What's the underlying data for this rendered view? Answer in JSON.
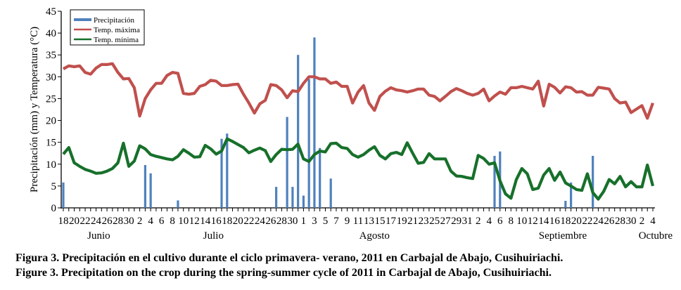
{
  "chart_data": {
    "type": "bar+line",
    "ylabel": "Precipitación (mm) y Temperatura (°C)",
    "xlabel": "",
    "ylim": [
      0,
      45
    ],
    "yticks": [
      0,
      5,
      10,
      15,
      20,
      25,
      30,
      35,
      40,
      45
    ],
    "grid": false,
    "legend_position": "top-left",
    "n_days": 109,
    "x_tick_labels": [
      "18",
      "20",
      "22",
      "24",
      "26",
      "28",
      "30",
      "2",
      "4",
      "6",
      "8",
      "10",
      "12",
      "14",
      "16",
      "18",
      "20",
      "22",
      "24",
      "26",
      "28",
      "30",
      "1",
      "3",
      "5",
      "7",
      "9",
      "11",
      "13",
      "15",
      "17",
      "19",
      "21",
      "23",
      "25",
      "27",
      "29",
      "31",
      "2",
      "4",
      "6",
      "8",
      "10",
      "12",
      "14",
      "16",
      "18",
      "20",
      "22",
      "24",
      "26",
      "28",
      "30",
      "2",
      "4"
    ],
    "months": [
      {
        "label": "Junio",
        "center_day": 6.5
      },
      {
        "label": "Julio",
        "center_day": 27.5
      },
      {
        "label": "Agosto",
        "center_day": 57
      },
      {
        "label": "Septiembre",
        "center_day": 91.5
      },
      {
        "label": "Octubre",
        "center_day": 108.5
      }
    ],
    "series": [
      {
        "name": "Precipitación",
        "kind": "bar",
        "color": "#4f81bd",
        "points": [
          [
            0,
            5.8
          ],
          [
            15,
            9.8
          ],
          [
            16,
            7.9
          ],
          [
            21,
            1.7
          ],
          [
            29,
            15.8
          ],
          [
            30,
            17
          ],
          [
            39,
            4.8
          ],
          [
            41,
            20.8
          ],
          [
            42,
            4.8
          ],
          [
            43,
            35
          ],
          [
            44,
            2.8
          ],
          [
            45,
            29.5
          ],
          [
            46,
            39
          ],
          [
            47,
            13.7
          ],
          [
            49,
            6.7
          ],
          [
            79,
            11.9
          ],
          [
            80,
            12.9
          ],
          [
            92,
            1.6
          ],
          [
            93,
            5.8
          ],
          [
            97,
            11.9
          ]
        ]
      },
      {
        "name": "Temp. máxima",
        "kind": "line",
        "color": "#c0504d",
        "values": [
          31.8,
          32.5,
          32.3,
          32.5,
          31,
          30.6,
          32,
          32.8,
          32.8,
          33,
          31,
          29.5,
          29.6,
          27.5,
          21,
          25,
          27,
          28.5,
          28.5,
          30.3,
          31,
          30.8,
          26.2,
          26,
          26.2,
          27.8,
          28.2,
          29.2,
          29,
          28,
          28,
          28.2,
          28.3,
          26,
          24,
          21.7,
          23.8,
          24.6,
          28.2,
          28,
          27,
          25.2,
          26.8,
          26.6,
          28.5,
          30,
          30,
          29.5,
          29.5,
          28.5,
          28.8,
          27.8,
          27.8,
          24,
          26.5,
          28,
          24,
          22.3,
          25.5,
          26.7,
          27.5,
          27,
          26.8,
          26.5,
          26.8,
          27.2,
          27.2,
          25.8,
          25.5,
          24.5,
          25.5,
          26.6,
          27.3,
          26.8,
          26.2,
          25.8,
          26.2,
          27.2,
          24.5,
          25.6,
          26.5,
          26,
          27.5,
          27.5,
          27.8,
          27.5,
          27.2,
          29,
          23.3,
          28.3,
          27.6,
          26.3,
          27.7,
          27.5,
          26.5,
          26.6,
          25.8,
          25.8,
          27.6,
          27.4,
          27.2,
          25,
          24,
          24.2,
          21.8,
          22.6,
          23.4,
          20.5,
          24
        ]
      },
      {
        "name": "Temp. mínima",
        "kind": "line",
        "color": "#17702a",
        "values": [
          12.3,
          13.8,
          10.3,
          9.5,
          8.8,
          8.4,
          7.9,
          8,
          8.4,
          9,
          10.3,
          14.8,
          9.5,
          10.7,
          14.2,
          13.5,
          12.2,
          11.8,
          11.5,
          11.2,
          11,
          11.8,
          13.3,
          12.5,
          11.6,
          11.7,
          14.3,
          13.5,
          12.3,
          13,
          15.8,
          15.2,
          14.5,
          13.8,
          12.6,
          13.2,
          13.7,
          13.1,
          10.6,
          12.2,
          13.4,
          13.3,
          13.4,
          14.6,
          11.2,
          10.6,
          12.2,
          13,
          12.8,
          14.7,
          14.8,
          13.8,
          13.6,
          12.2,
          11.6,
          12.2,
          13.2,
          14,
          12,
          11.2,
          12.4,
          12.7,
          12.2,
          14.9,
          12.5,
          10.2,
          10.4,
          12.4,
          11.2,
          11.2,
          11.2,
          8.4,
          7.3,
          7.2,
          6.9,
          6.7,
          12,
          11.3,
          10,
          10.3,
          6.2,
          3.2,
          2.2,
          6.5,
          9,
          7.8,
          4.2,
          4.5,
          7.5,
          9,
          6.3,
          8.2,
          5.7,
          5,
          4.2,
          4.0,
          7.8,
          3.5,
          2,
          3.8,
          6.5,
          5.5,
          7.2,
          4.8,
          6,
          4.8,
          4.8,
          9.8,
          5
        ]
      }
    ]
  },
  "caption": {
    "es": "Figura 3. Precipitación en el cultivo durante el ciclo primavera- verano, 2011 en Carbajal de Abajo, Cusihuiriachi.",
    "en": "Figure 3. Precipitation on the crop during the spring-summer cycle of 2011 in Carbajal de Abajo, Cusihuiriachi."
  }
}
